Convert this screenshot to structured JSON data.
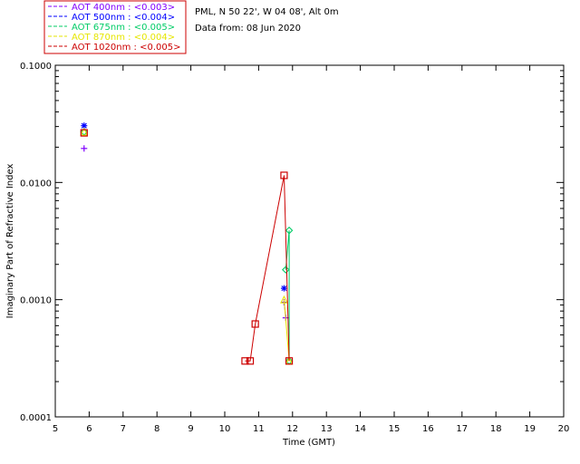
{
  "chart_data": {
    "type": "scatter",
    "site_label": "PML, N 50 22', W 04 08', Alt 0m",
    "date_label": "Data from: 08 Jun 2020",
    "xlabel": "Time (GMT)",
    "ylabel": "Imaginary Part of Refractive Index",
    "xlim": [
      5,
      20
    ],
    "ylim": [
      0.0001,
      0.1
    ],
    "yscale": "log",
    "x_ticks": [
      "5",
      "6",
      "7",
      "8",
      "9",
      "10",
      "11",
      "12",
      "13",
      "14",
      "15",
      "16",
      "17",
      "18",
      "19",
      "20"
    ],
    "y_ticks": [
      {
        "value": 0.0001,
        "label": "0.0001"
      },
      {
        "value": 0.001,
        "label": "0.0010"
      },
      {
        "value": 0.01,
        "label": "0.0100"
      },
      {
        "value": 0.1,
        "label": "0.1000"
      }
    ],
    "grid": false,
    "legend_position": "top-left, outside plot",
    "series": [
      {
        "name": "AOT  400nm : <0.003>",
        "color": "#7f00ff",
        "marker": "plus",
        "points": [
          [
            5.85,
            0.0195
          ],
          [
            11.75,
            0.00095
          ],
          [
            11.8,
            0.0007
          ]
        ]
      },
      {
        "name": "AOT  500nm : <0.004>",
        "color": "#0000ff",
        "marker": "asterisk",
        "points": [
          [
            5.85,
            0.0305
          ],
          [
            11.75,
            0.00125
          ]
        ]
      },
      {
        "name": "AOT  675nm : <0.005>",
        "color": "#00cc66",
        "marker": "diamond",
        "points": [
          [
            5.85,
            0.027
          ],
          [
            11.8,
            0.0018
          ],
          [
            11.9,
            0.0039
          ],
          [
            11.9,
            0.0003
          ]
        ]
      },
      {
        "name": "AOT  870nm : <0.004>",
        "color": "#e6e600",
        "marker": "triangle",
        "points": [
          [
            5.85,
            0.027
          ],
          [
            11.75,
            0.001
          ],
          [
            11.9,
            0.0003
          ]
        ]
      },
      {
        "name": "AOT 1020nm : <0.005>",
        "color": "#cc0000",
        "marker": "square",
        "points": [
          [
            5.85,
            0.0265
          ],
          [
            10.6,
            0.0003
          ],
          [
            10.75,
            0.0003
          ],
          [
            10.9,
            0.00062
          ],
          [
            11.75,
            0.0115
          ],
          [
            11.9,
            0.0003
          ]
        ]
      }
    ]
  }
}
